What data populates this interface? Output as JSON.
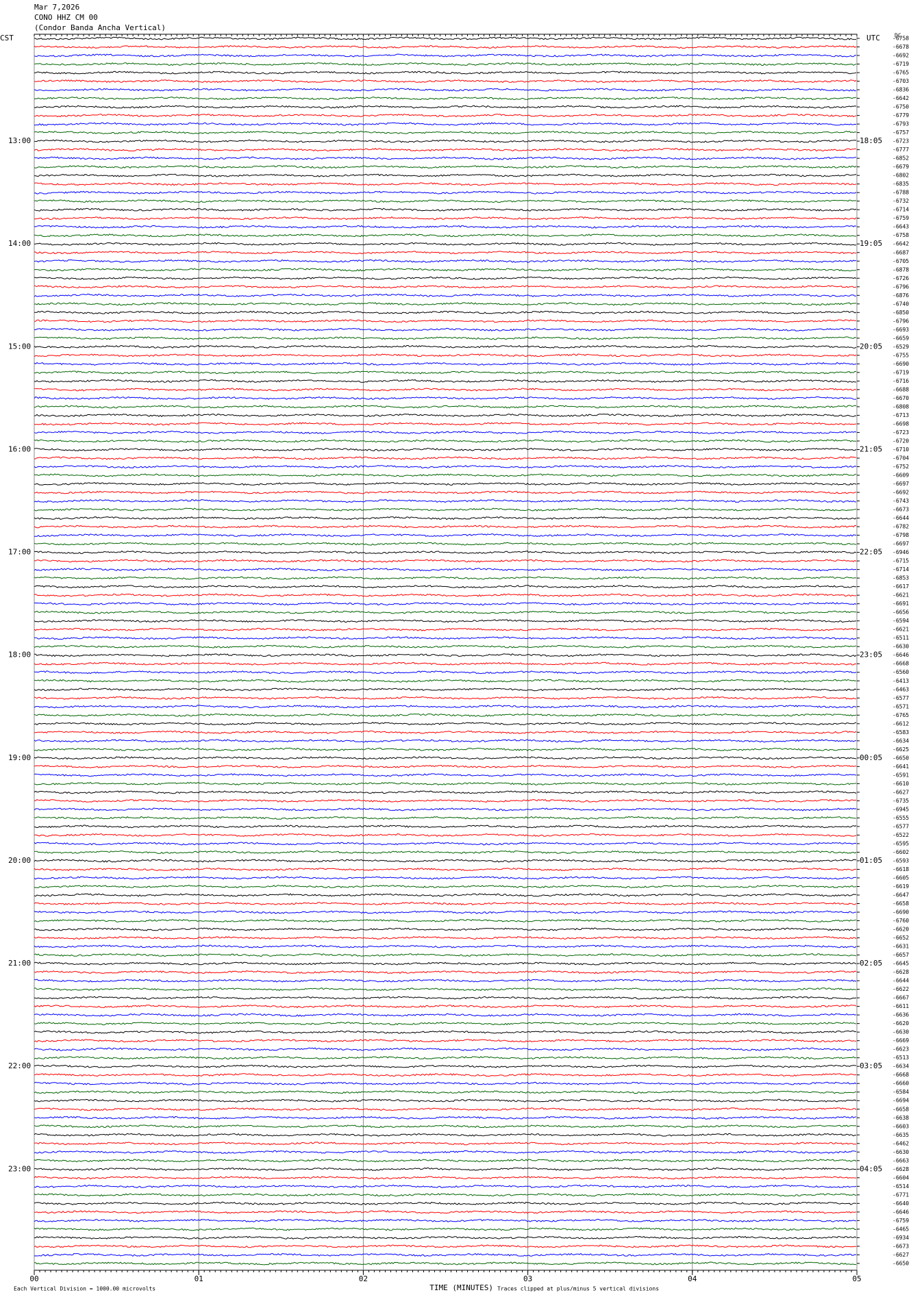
{
  "chart_data": {
    "type": "helicorder",
    "title": [
      "Mar 7,2026",
      "CONO HHZ CM 00",
      "(Condor Banda Ancha Vertical)"
    ],
    "left_axis_label": "CST",
    "right_axis_label": "UTC",
    "dc_label": "DC",
    "left_hour_labels": [
      "13:00",
      "14:00",
      "15:00",
      "16:00",
      "17:00",
      "18:00",
      "19:00",
      "20:00",
      "21:00",
      "22:00",
      "23:00"
    ],
    "right_hour_labels": [
      "18:05",
      "19:05",
      "20:05",
      "21:05",
      "22:05",
      "23:05",
      "00:05",
      "01:05",
      "02:05",
      "03:05",
      "04:05"
    ],
    "traces_per_hour": 12,
    "trace_colors": [
      "#000000",
      "#ff0000",
      "#0000ff",
      "#006400"
    ],
    "trace_offsets": [
      -6758,
      -6678,
      -6692,
      -6719,
      -6765,
      -6703,
      -6836,
      -6642,
      -6750,
      -6779,
      -6793,
      -6757,
      -6723,
      -6777,
      -6852,
      -6679,
      -6802,
      -6835,
      -6788,
      -6732,
      -6714,
      -6759,
      -6643,
      -6758,
      -6642,
      -6687,
      -6705,
      -6878,
      -6726,
      -6796,
      -6876,
      -6740,
      -6850,
      -6796,
      -6693,
      -6659,
      -6529,
      -6755,
      -6690,
      -6719,
      -6716,
      -6688,
      -6670,
      -6808,
      -6713,
      -6698,
      -6723,
      -6720,
      -6710,
      -6704,
      -6752,
      -6609,
      -6697,
      -6692,
      -6743,
      -6673,
      -6644,
      -6782,
      -6798,
      -6697,
      -6946,
      -6715,
      -6714,
      -6853,
      -6617,
      -6621,
      -6691,
      -6656,
      -6594,
      -6621,
      -6511,
      -6630,
      -6646,
      -6668,
      -6560,
      -6413,
      -6463,
      -6577,
      -6571,
      -6765,
      -6612,
      -6583,
      -6634,
      -6625,
      -6650,
      -6641,
      -6591,
      -6610,
      -6627,
      -6735,
      -6945,
      -6555,
      -6577,
      -6522,
      -6595,
      -6602,
      -6593,
      -6618,
      -6605,
      -6619,
      -6647,
      -6658,
      -6690,
      -6760,
      -6620,
      -6652,
      -6631,
      -6657,
      -6645,
      -6628,
      -6644,
      -6622,
      -6667,
      -6611,
      -6636,
      -6620,
      -6630,
      -6669,
      -6623,
      -6513,
      -6634,
      -6668,
      -6660,
      -6584,
      -6694,
      -6658,
      -6638,
      -6603,
      -6635,
      -6462,
      -6630,
      -6663,
      -6628,
      -6604,
      -6514,
      -6771,
      -6640,
      -6646,
      -6759,
      -6465,
      -6934,
      -6673,
      -6627,
      -6650
    ],
    "xlim": [
      0,
      5
    ],
    "xticks": [
      {
        "value": 0,
        "label": "00"
      },
      {
        "value": 1,
        "label": "01"
      },
      {
        "value": 2,
        "label": "02"
      },
      {
        "value": 3,
        "label": "03"
      },
      {
        "value": 4,
        "label": "04"
      },
      {
        "value": 5,
        "label": "05"
      }
    ],
    "xlabel": "TIME (MINUTES)",
    "footer_left": "Each Vertical Division = 1000.00 microvolts",
    "footer_right": "Traces clipped at plus/minus 5 vertical divisions",
    "grid": true
  }
}
